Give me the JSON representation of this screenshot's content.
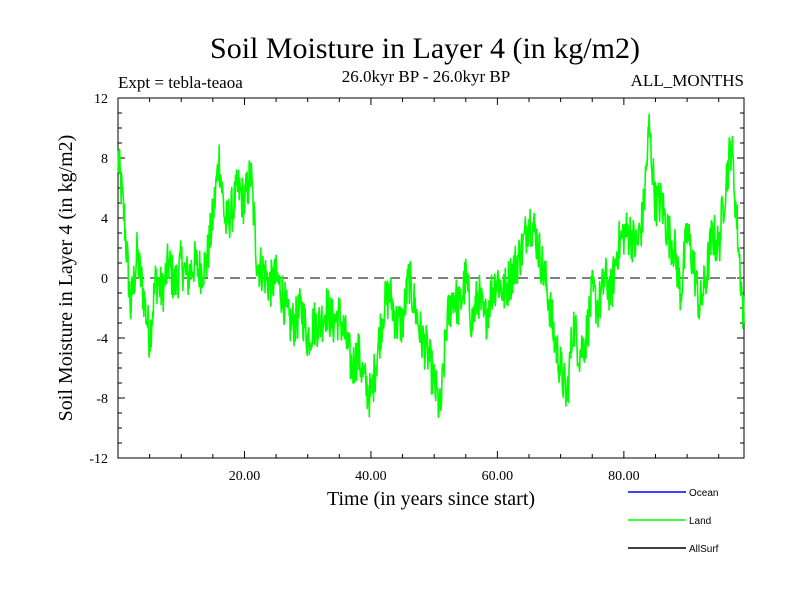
{
  "chart_data": {
    "type": "line",
    "title": "Soil Moisture in Layer 4 (in kg/m2)",
    "subtitle_left": "Expt = tebla-teaoa",
    "subtitle_center": "26.0kyr BP - 26.0kyr BP",
    "subtitle_right": "ALL_MONTHS",
    "xlabel": "Time (in years since start)",
    "ylabel": "Soil Moisture in Layer 4 (in kg/m2)",
    "xlim": [
      0,
      99
    ],
    "ylim": [
      -12,
      12
    ],
    "x_ticks": [
      20,
      40,
      60,
      80
    ],
    "x_tick_labels": [
      "20.00",
      "40.00",
      "60.00",
      "80.00"
    ],
    "y_ticks": [
      -12,
      -8,
      -4,
      0,
      4,
      8,
      12
    ],
    "y_tick_labels": [
      "-12",
      "-8",
      "-4",
      "0",
      "4",
      "8",
      "12"
    ],
    "zero_line": 0,
    "legend_position": "bottom-right",
    "legend": [
      {
        "name": "Ocean",
        "color": "#0000ff"
      },
      {
        "name": "Land",
        "color": "#00ff00"
      },
      {
        "name": "AllSurf",
        "color": "#000000"
      }
    ],
    "series": [
      {
        "name": "Land",
        "color": "#00ff00",
        "x": [
          0,
          1,
          2,
          3,
          4,
          5,
          6,
          7,
          8,
          9,
          10,
          11,
          12,
          13,
          14,
          15,
          16,
          17,
          18,
          19,
          20,
          21,
          22,
          23,
          24,
          25,
          26,
          27,
          28,
          29,
          30,
          31,
          32,
          33,
          34,
          35,
          36,
          37,
          38,
          39,
          40,
          41,
          42,
          43,
          44,
          45,
          46,
          47,
          48,
          49,
          50,
          51,
          52,
          53,
          54,
          55,
          56,
          57,
          58,
          59,
          60,
          61,
          62,
          63,
          64,
          65,
          66,
          67,
          68,
          69,
          70,
          71,
          72,
          73,
          74,
          75,
          76,
          77,
          78,
          79,
          80,
          81,
          82,
          83,
          84,
          85,
          86,
          87,
          88,
          89,
          90,
          91,
          92,
          93,
          94,
          95,
          96,
          97,
          98,
          99
        ],
        "values": [
          8,
          4,
          -2,
          1.5,
          -1,
          -4,
          0,
          -1,
          1,
          -0.5,
          1,
          0,
          1,
          0.5,
          1,
          4,
          8,
          3.5,
          4.5,
          6,
          5,
          7,
          1,
          0.5,
          -0.5,
          0,
          -1,
          -3,
          -3,
          -2,
          -4,
          -3,
          -3,
          -2,
          -3,
          -2.5,
          -4,
          -6,
          -5,
          -7,
          -8,
          -5,
          -2,
          -1,
          -3,
          -3,
          0,
          -2,
          -4,
          -5,
          -7,
          -9,
          -3,
          -1,
          -2,
          0,
          -3,
          -1,
          -3,
          -1,
          0,
          -1,
          0,
          1,
          2,
          4,
          3,
          1,
          -1,
          -4,
          -6,
          -8,
          -3,
          -5,
          -4,
          -1,
          -2,
          0,
          -1,
          2,
          3,
          3,
          2,
          4,
          10,
          5,
          5,
          3,
          2,
          -1,
          3,
          1,
          -2,
          0,
          3,
          2,
          6,
          9,
          3,
          -3
        ]
      }
    ]
  }
}
